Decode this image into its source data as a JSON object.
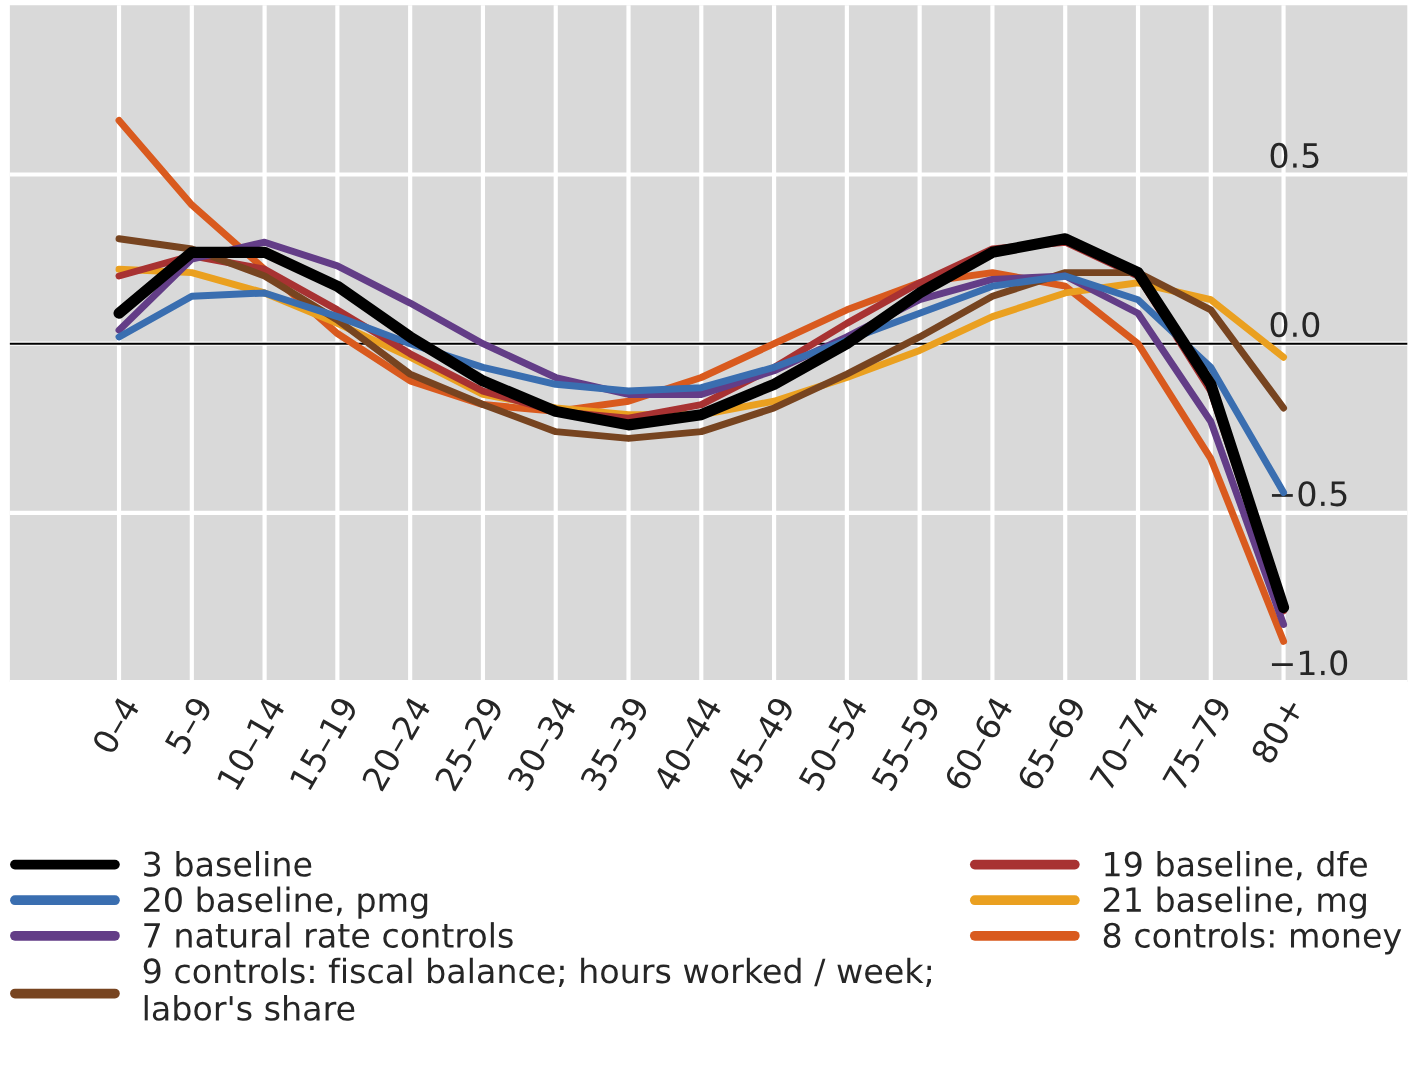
{
  "chart_data": {
    "type": "line",
    "categories": [
      "0–4",
      "5–9",
      "10–14",
      "15–19",
      "20–24",
      "25–29",
      "30–34",
      "35–39",
      "40–44",
      "45–49",
      "50–54",
      "55–59",
      "60–64",
      "65–69",
      "70–74",
      "75–79",
      "80+"
    ],
    "series": [
      {
        "name": "3 baseline",
        "color": "#000000",
        "values": [
          0.09,
          0.27,
          0.27,
          0.17,
          0.02,
          -0.11,
          -0.2,
          -0.24,
          -0.21,
          -0.12,
          0.0,
          0.15,
          0.27,
          0.31,
          0.21,
          -0.12,
          -0.78
        ]
      },
      {
        "name": "20 baseline, pmg",
        "color": "#3a6eb0",
        "values": [
          0.02,
          0.14,
          0.15,
          0.08,
          0.0,
          -0.07,
          -0.12,
          -0.14,
          -0.13,
          -0.07,
          0.01,
          0.09,
          0.17,
          0.2,
          0.13,
          -0.07,
          -0.44
        ]
      },
      {
        "name": "7 natural rate controls",
        "color": "#633d87",
        "values": [
          0.04,
          0.25,
          0.3,
          0.23,
          0.12,
          0.0,
          -0.1,
          -0.15,
          -0.15,
          -0.08,
          0.02,
          0.13,
          0.19,
          0.2,
          0.09,
          -0.23,
          -0.83
        ]
      },
      {
        "name": "9 controls: fiscal balance; hours worked / week;\nlabor's share",
        "color": "#774420",
        "values": [
          0.31,
          0.28,
          0.2,
          0.07,
          -0.09,
          -0.18,
          -0.26,
          -0.28,
          -0.26,
          -0.19,
          -0.09,
          0.02,
          0.14,
          0.21,
          0.21,
          0.1,
          -0.19
        ]
      },
      {
        "name": "19 baseline, dfe",
        "color": "#a83232",
        "values": [
          0.2,
          0.26,
          0.22,
          0.1,
          -0.03,
          -0.14,
          -0.2,
          -0.22,
          -0.18,
          -0.07,
          0.06,
          0.18,
          0.28,
          0.3,
          0.2,
          -0.14,
          -0.79
        ]
      },
      {
        "name": "21 baseline, mg",
        "color": "#eaa020",
        "values": [
          0.22,
          0.21,
          0.15,
          0.06,
          -0.04,
          -0.15,
          -0.19,
          -0.21,
          -0.21,
          -0.17,
          -0.1,
          -0.02,
          0.08,
          0.15,
          0.18,
          0.13,
          -0.04
        ]
      },
      {
        "name": "8 controls: money",
        "color": "#d95a1e",
        "values": [
          0.66,
          0.41,
          0.22,
          0.03,
          -0.11,
          -0.18,
          -0.2,
          -0.17,
          -0.1,
          0.0,
          0.1,
          0.18,
          0.21,
          0.17,
          0.0,
          -0.34,
          -0.88
        ]
      }
    ],
    "ylim": [
      -1.0,
      1.0
    ],
    "yticks": [
      {
        "value": -1.0,
        "label": "−1.0"
      },
      {
        "value": -0.5,
        "label": "−0.5"
      },
      {
        "value": 0.0,
        "label": "0.0"
      },
      {
        "value": 0.5,
        "label": "0.5"
      }
    ],
    "ref_lines": [
      {
        "axis": "y",
        "value": 0.0,
        "color": "#000000"
      }
    ],
    "grid": true,
    "legend": "bottom",
    "marker": "none",
    "line_style": "solid"
  }
}
